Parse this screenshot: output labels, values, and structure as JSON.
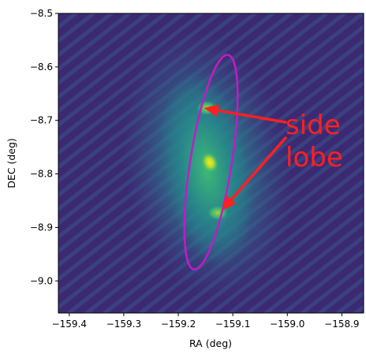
{
  "chart_data": {
    "type": "heatmap",
    "title": "",
    "xlabel": "RA (deg)",
    "ylabel": "DEC (deg)",
    "xlim": [
      -159.42,
      -158.86
    ],
    "ylim": [
      -9.06,
      -8.5
    ],
    "x_ticks": [
      -159.4,
      -159.3,
      -159.2,
      -159.1,
      -159.0,
      -158.9
    ],
    "x_tick_labels": [
      "−159.4",
      "−159.3",
      "−159.2",
      "−159.1",
      "−159.0",
      "−158.9"
    ],
    "y_ticks": [
      -8.5,
      -8.6,
      -8.7,
      -8.8,
      -8.9,
      -9.0
    ],
    "y_tick_labels": [
      "−8.5",
      "−8.6",
      "−8.7",
      "−8.8",
      "−8.9",
      "−9.0"
    ],
    "colormap": "viridis",
    "grid": false,
    "peak": {
      "ra": -159.135,
      "dec": -8.78
    },
    "side_lobes": [
      {
        "ra": -159.155,
        "dec": -8.675
      },
      {
        "ra": -159.12,
        "dec": -8.88
      }
    ],
    "ellipse": {
      "center": {
        "ra": -159.14,
        "dec": -8.778
      },
      "semi_major_deg": 0.203,
      "semi_minor_deg": 0.038,
      "tilt_deg": -9,
      "color": "#c21bc7"
    },
    "annotation": {
      "lines": [
        "side",
        "lobe"
      ],
      "color": "#ff2020",
      "arrow_targets": [
        {
          "ra": -159.153,
          "dec": -8.677
        },
        {
          "ra": -159.12,
          "dec": -8.868
        }
      ]
    }
  }
}
